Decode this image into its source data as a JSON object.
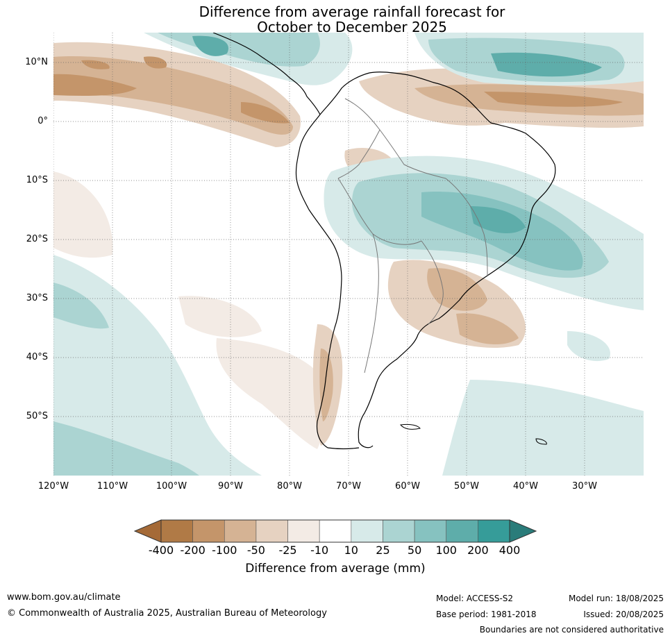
{
  "title_line1": "Difference from average rainfall forecast for",
  "title_line2": "October to December 2025",
  "lat_labels": [
    "10°N",
    "0°",
    "10°S",
    "20°S",
    "30°S",
    "40°S",
    "50°S"
  ],
  "lon_labels": [
    "120°W",
    "110°W",
    "100°W",
    "90°W",
    "80°W",
    "70°W",
    "60°W",
    "50°W",
    "40°W",
    "30°W"
  ],
  "colorbar": {
    "ticks": [
      "-400",
      "-200",
      "-100",
      "-50",
      "-25",
      "-10",
      "10",
      "25",
      "50",
      "100",
      "200",
      "400"
    ],
    "colors": [
      "#a56a37",
      "#b07a46",
      "#c4956a",
      "#d5b394",
      "#e6d2c1",
      "#f3ebe5",
      "#ffffff",
      "#d7eae9",
      "#abd4d2",
      "#86c2c0",
      "#5eadaa",
      "#369c99",
      "#2a7c7a"
    ],
    "title": "Difference from average (mm)"
  },
  "footer": {
    "website": "www.bom.gov.au/climate",
    "copyright": "© Commonwealth of Australia 2025, Australian Bureau of Meteorology",
    "model": "Model: ACCESS-S2",
    "base_period": "Base period: 1981-2018",
    "model_run": "Model run: 18/08/2025",
    "issued": "Issued: 20/08/2025",
    "disclaimer": "Boundaries are not considered authoritative"
  }
}
